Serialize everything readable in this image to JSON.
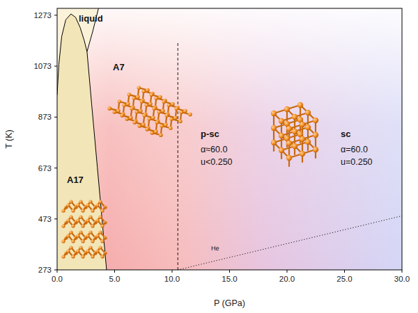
{
  "chart_data": {
    "type": "line",
    "xlabel": "P (GPa)",
    "ylabel": "T (K)",
    "xlim": [
      0,
      30
    ],
    "ylim": [
      273,
      1300
    ],
    "xticks": [
      {
        "value": 0,
        "label": "0.0"
      },
      {
        "value": 5,
        "label": "5.0"
      },
      {
        "value": 10,
        "label": "10.0"
      },
      {
        "value": 15,
        "label": "15.0"
      },
      {
        "value": 20,
        "label": "20.0"
      },
      {
        "value": 25,
        "label": "25.0"
      },
      {
        "value": 30,
        "label": "30.0"
      }
    ],
    "yticks": [
      273,
      473,
      673,
      873,
      1073,
      1273
    ],
    "grid": false,
    "series": [
      {
        "color": "#000000",
        "line_style": "solid",
        "x": [
          0,
          0.15,
          0.4,
          0.75,
          1.2,
          1.6,
          2.0,
          2.35,
          2.6
        ],
        "y": [
          960,
          1080,
          1190,
          1255,
          1278,
          1265,
          1225,
          1175,
          1130
        ]
      },
      {
        "color": "#000000",
        "line_style": "solid",
        "x": [
          2.6,
          3.0,
          3.5,
          3.9,
          4.3
        ],
        "y": [
          1130,
          925,
          675,
          475,
          273
        ]
      },
      {
        "color": "#000000",
        "line_style": "solid",
        "x": [
          2.6,
          3.1,
          3.6
        ],
        "y": [
          1130,
          1210,
          1300
        ]
      },
      {
        "color": "#000000",
        "line_style": "dashed",
        "x": [
          10.5,
          10.5
        ],
        "y": [
          273,
          1165
        ]
      },
      {
        "color": "#000000",
        "line_style": "dotted",
        "x": [
          10.5,
          30
        ],
        "y": [
          273,
          485
        ]
      }
    ],
    "regions": [
      {
        "label": "liquid"
      },
      {
        "label": "A7"
      },
      {
        "label": "A17"
      },
      {
        "label": "p-sc",
        "lines": [
          "α≈60.0",
          "u<0.250"
        ]
      },
      {
        "label": "sc",
        "lines": [
          "α=60.0",
          "u=0.250"
        ]
      }
    ],
    "annotations": [
      {
        "text": "He"
      }
    ]
  }
}
